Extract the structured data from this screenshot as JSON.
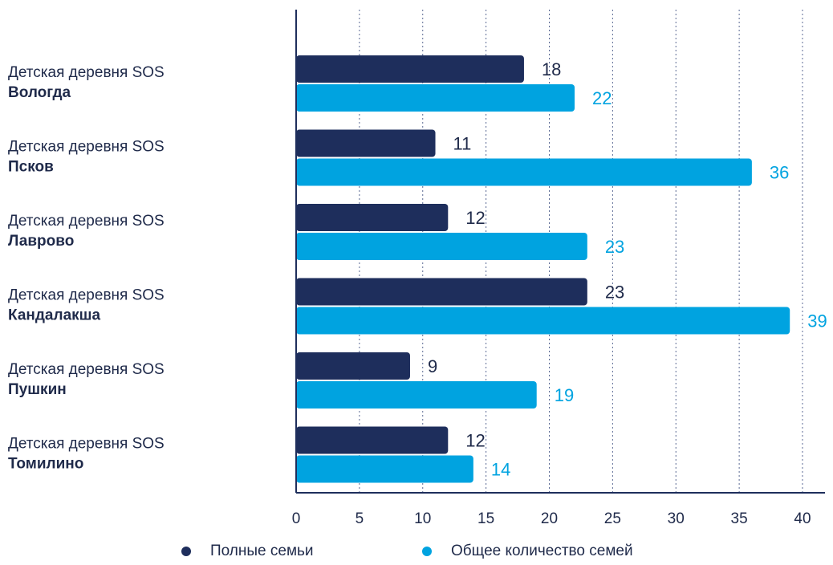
{
  "chart_data": {
    "type": "bar",
    "orientation": "horizontal",
    "categories": [
      {
        "line1": "Детская деревня SOS",
        "line2": "Вологда"
      },
      {
        "line1": "Детская деревня SOS",
        "line2": "Псков"
      },
      {
        "line1": "Детская деревня SOS",
        "line2": "Лаврово"
      },
      {
        "line1": "Детская деревня SOS",
        "line2": "Кандалакша"
      },
      {
        "line1": "Детская деревня SOS",
        "line2": "Пушкин"
      },
      {
        "line1": "Детская деревня SOS",
        "line2": "Томилино"
      }
    ],
    "series": [
      {
        "name": "Полные семьи",
        "color": "#1e2e5c",
        "values": [
          18,
          11,
          12,
          23,
          9,
          12
        ]
      },
      {
        "name": "Общее количество семей",
        "color": "#00a3e0",
        "values": [
          22,
          36,
          23,
          39,
          19,
          14
        ]
      }
    ],
    "xlim": [
      0,
      40
    ],
    "xticks": [
      0,
      5,
      10,
      15,
      20,
      25,
      30,
      35,
      40
    ],
    "grid": "vertical dotted",
    "legend_position": "bottom"
  }
}
